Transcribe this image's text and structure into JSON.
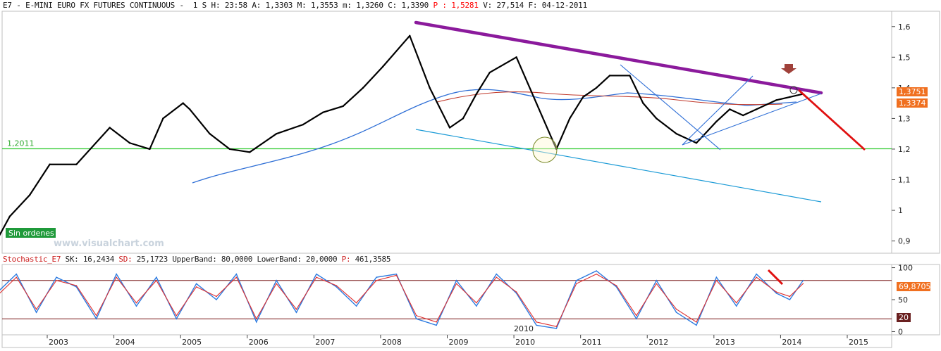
{
  "header": {
    "symbol": "E7",
    "sep": " - ",
    "name": "E-MINI EURO FX FUTURES CONTINUOUS",
    "sep2": " -  ",
    "period": "1 S",
    "time_label": "H:",
    "time": "23:58",
    "open_label": "A:",
    "open": "1,3303",
    "high_label": "M:",
    "high": "1,3553",
    "low_label": "m:",
    "low": "1,3260",
    "close_label": "C:",
    "close": "1,3390",
    "p_label": "P :",
    "p_value": "1,5281",
    "volume_label": "V:",
    "volume": "27,514",
    "date_label": "F:",
    "date": "04-12-2011"
  },
  "price_panel": {
    "support_label": "1,2011",
    "badge": "Sin ordenes",
    "watermark": "www.visualchart.com",
    "price_marker_1": "1,3751",
    "price_marker_2": "1,3374"
  },
  "stoch_header": {
    "name": "Stochastic_E7",
    "sk_label": "SK:",
    "sk": "16,2434",
    "sd_label": "SD:",
    "sd": "25,1723",
    "upper_label": "UpperBand:",
    "upper": "80,0000",
    "lower_label": "LowerBand:",
    "lower": "20,0000",
    "p_label": "P:",
    "p": "461,3585"
  },
  "stoch_panel": {
    "value_marker": "69,8705",
    "lower_marker": "20",
    "year_marker": "2010"
  },
  "colors": {
    "accent_red": "#ff0000",
    "trend_purple": "#8b1a9c",
    "ma_blue": "#2f6fd6",
    "ma_red": "#c0392b",
    "support_green": "#33cc33",
    "badge_green": "#1f9a3a",
    "marker_orange": "#f07020",
    "stoch_blue": "#2d7be0",
    "stoch_red": "#e03030"
  },
  "chart_data": [
    {
      "type": "line",
      "ylim": [
        0.86,
        1.65
      ],
      "yticks": [
        "1,6",
        "1,5",
        "1,4",
        "1,3",
        "1,2",
        "1,1",
        "1",
        "0,9"
      ],
      "ytick_values": [
        1.6,
        1.5,
        1.4,
        1.3,
        1.2,
        1.1,
        1.0,
        0.9
      ],
      "x": [
        2002.1,
        2002.3,
        2002.6,
        2002.9,
        2003.3,
        2003.8,
        2004.1,
        2004.4,
        2004.6,
        2004.9,
        2005.0,
        2005.3,
        2005.6,
        2005.9,
        2006.3,
        2006.7,
        2007.0,
        2007.3,
        2007.6,
        2007.9,
        2008.3,
        2008.6,
        2008.9,
        2009.1,
        2009.3,
        2009.5,
        2009.9,
        2010.2,
        2010.5,
        2010.7,
        2010.9,
        2011.1,
        2011.3,
        2011.6,
        2011.8,
        2012.0,
        2012.3,
        2012.6,
        2012.9,
        2013.1,
        2013.3,
        2013.5,
        2013.8,
        2014.0,
        2014.2
      ],
      "y": [
        0.9,
        0.98,
        1.05,
        1.15,
        1.15,
        1.27,
        1.22,
        1.2,
        1.3,
        1.35,
        1.33,
        1.25,
        1.2,
        1.19,
        1.25,
        1.28,
        1.32,
        1.34,
        1.4,
        1.47,
        1.57,
        1.4,
        1.27,
        1.3,
        1.38,
        1.45,
        1.5,
        1.35,
        1.2,
        1.3,
        1.37,
        1.4,
        1.44,
        1.44,
        1.35,
        1.3,
        1.25,
        1.22,
        1.29,
        1.33,
        1.31,
        1.33,
        1.36,
        1.37,
        1.38
      ],
      "support_level": 1.2011
    },
    {
      "type": "line",
      "ylim": [
        -5,
        105
      ],
      "yticks": [
        "100",
        "50",
        "0"
      ],
      "ytick_values": [
        100,
        50,
        0
      ],
      "upper_band": 80,
      "lower_band": 20,
      "xticks": [
        "2003",
        "2004",
        "2005",
        "2006",
        "2007",
        "2008",
        "2009",
        "2010",
        "2011",
        "2012",
        "2013",
        "2014",
        "2015"
      ],
      "xtick_values": [
        2003,
        2004,
        2005,
        2006,
        2007,
        2008,
        2009,
        2010,
        2011,
        2012,
        2013,
        2014,
        2015
      ],
      "x": [
        2002.1,
        2002.4,
        2002.7,
        2003.0,
        2003.3,
        2003.6,
        2003.9,
        2004.2,
        2004.5,
        2004.8,
        2005.1,
        2005.4,
        2005.7,
        2006.0,
        2006.3,
        2006.6,
        2006.9,
        2007.2,
        2007.5,
        2007.8,
        2008.1,
        2008.4,
        2008.7,
        2009.0,
        2009.3,
        2009.6,
        2009.9,
        2010.2,
        2010.5,
        2010.8,
        2011.1,
        2011.4,
        2011.7,
        2012.0,
        2012.3,
        2012.6,
        2012.9,
        2013.2,
        2013.5,
        2013.8,
        2014.0,
        2014.2
      ],
      "series": [
        {
          "values": [
            60,
            90,
            30,
            85,
            70,
            20,
            90,
            40,
            85,
            20,
            75,
            50,
            90,
            15,
            80,
            30,
            90,
            70,
            40,
            85,
            90,
            20,
            10,
            80,
            40,
            90,
            60,
            10,
            5,
            80,
            95,
            70,
            20,
            80,
            30,
            10,
            85,
            40,
            90,
            60,
            50,
            80
          ]
        },
        {
          "values": [
            55,
            85,
            35,
            80,
            72,
            25,
            85,
            45,
            80,
            25,
            70,
            55,
            85,
            20,
            75,
            35,
            85,
            72,
            45,
            80,
            88,
            25,
            15,
            75,
            45,
            85,
            62,
            15,
            8,
            75,
            90,
            72,
            25,
            75,
            35,
            15,
            80,
            45,
            85,
            62,
            55,
            75
          ]
        }
      ]
    }
  ]
}
